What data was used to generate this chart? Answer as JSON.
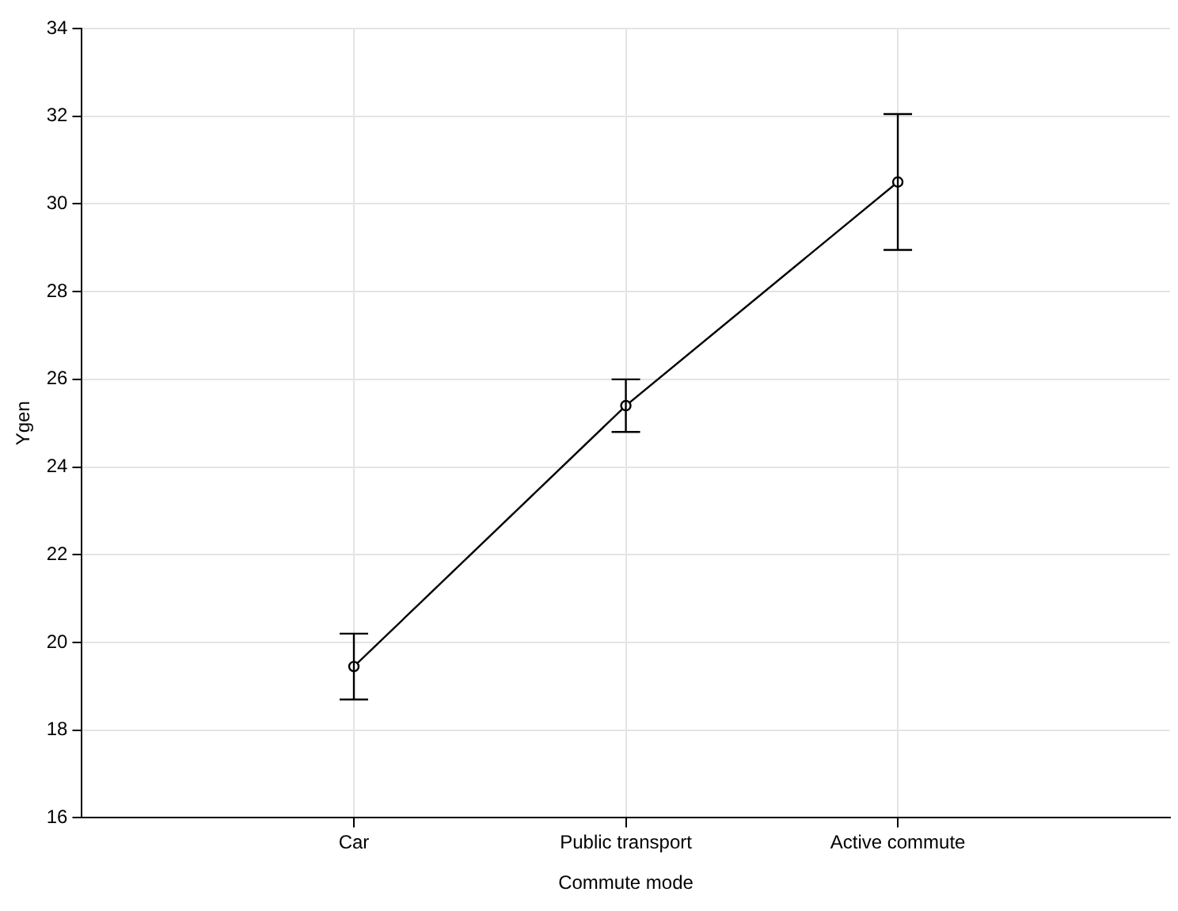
{
  "chart_data": {
    "type": "line",
    "xlabel": "Commute mode",
    "ylabel": "Ygen",
    "categories": [
      "Car",
      "Public transport",
      "Active commute"
    ],
    "values": [
      19.45,
      25.4,
      30.5
    ],
    "errors": [
      [
        18.7,
        20.2
      ],
      [
        24.8,
        26.0
      ],
      [
        28.95,
        32.05
      ]
    ],
    "color": "#000000",
    "marker": "circle",
    "line_style": "solid",
    "ylim": [
      16,
      34
    ],
    "yticks": [
      16,
      18,
      20,
      22,
      24,
      26,
      28,
      30,
      32,
      34
    ],
    "grid": true,
    "legend": false
  }
}
